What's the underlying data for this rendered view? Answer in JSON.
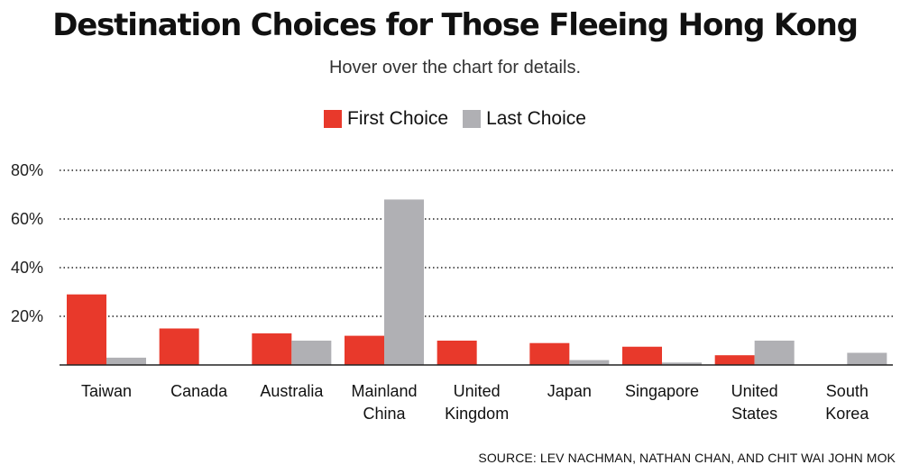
{
  "chart_data": {
    "type": "bar",
    "title": "Destination Choices for Those Fleeing Hong Kong",
    "subtitle": "Hover over the chart for details.",
    "categories": [
      [
        "Taiwan"
      ],
      [
        "Canada"
      ],
      [
        "Australia"
      ],
      [
        "Mainland",
        "China"
      ],
      [
        "United",
        "Kingdom"
      ],
      [
        "Japan"
      ],
      [
        "Singapore"
      ],
      [
        "United",
        "States"
      ],
      [
        "South",
        "Korea"
      ]
    ],
    "series": [
      {
        "name": "First Choice",
        "color": "#e8392b",
        "values": [
          29,
          15,
          13,
          12,
          10,
          9,
          7.5,
          4,
          0
        ]
      },
      {
        "name": "Last Choice",
        "color": "#b0b0b4",
        "values": [
          3,
          0,
          10,
          68,
          0,
          2,
          1,
          10,
          5
        ]
      }
    ],
    "y_ticks": [
      "20%",
      "40%",
      "60%",
      "80%"
    ],
    "y_tick_values": [
      20,
      40,
      60,
      80
    ],
    "ylim": [
      0,
      80
    ],
    "grid": true,
    "legend_position": "top-center",
    "source": "SOURCE: LEV NACHMAN, NATHAN CHAN, AND CHIT WAI JOHN MOK"
  }
}
